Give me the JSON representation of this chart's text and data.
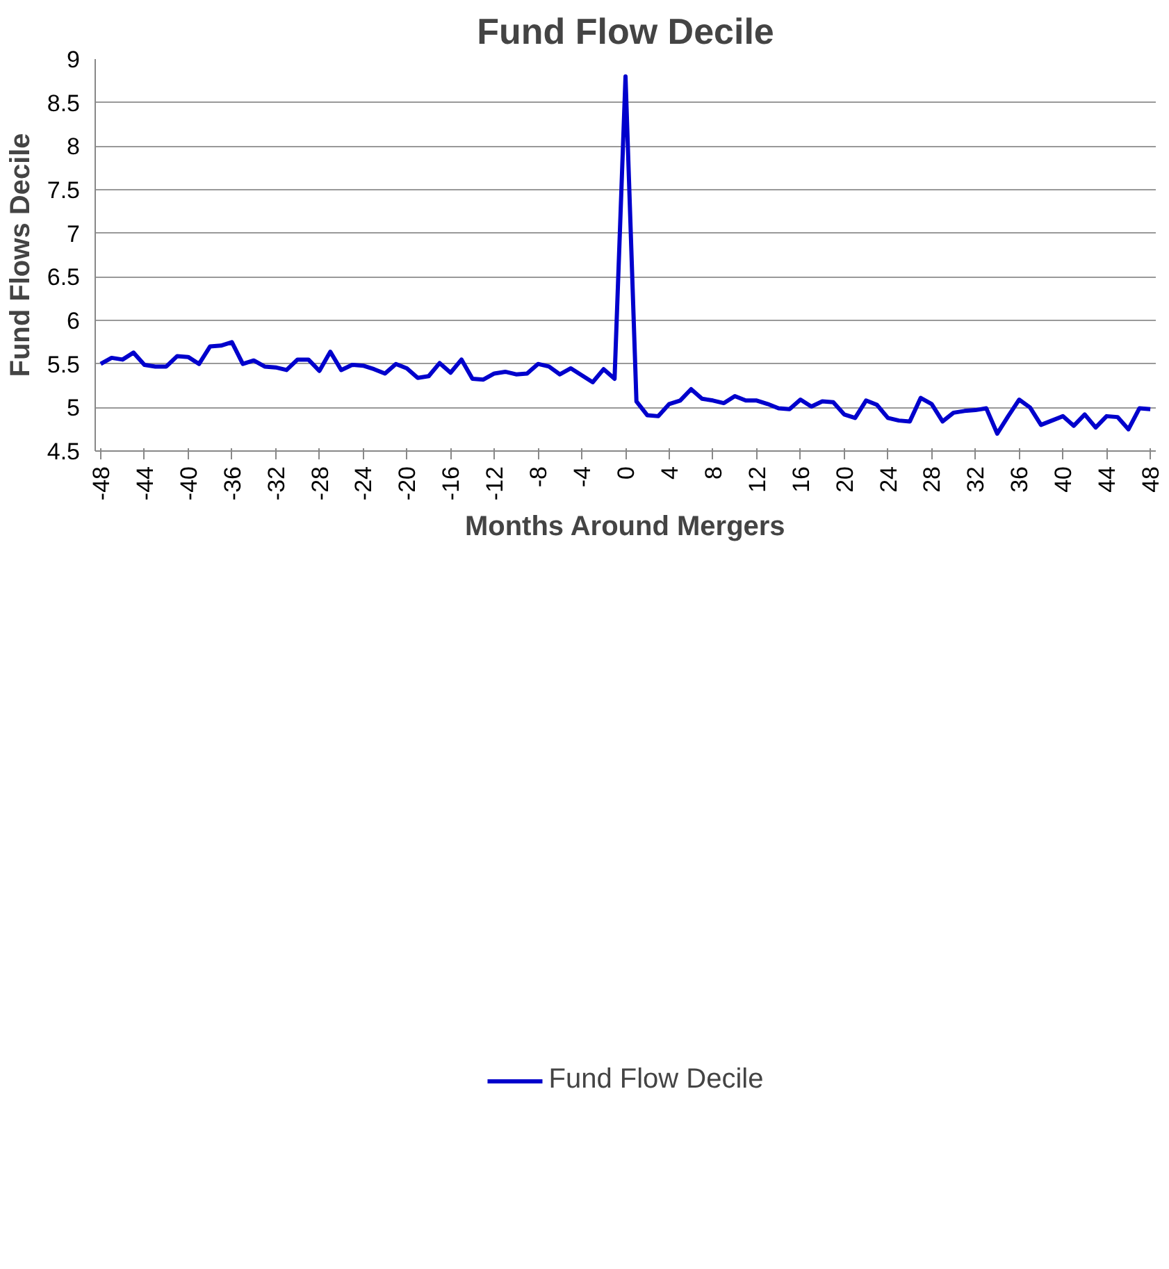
{
  "chart_data": {
    "type": "line",
    "title": "Fund Flow Decile",
    "xlabel": "Months Around Mergers",
    "ylabel": "Fund Flows Decile",
    "x": [
      -48,
      -47,
      -46,
      -45,
      -44,
      -43,
      -42,
      -41,
      -40,
      -39,
      -38,
      -37,
      -36,
      -35,
      -34,
      -33,
      -32,
      -31,
      -30,
      -29,
      -28,
      -27,
      -26,
      -25,
      -24,
      -23,
      -22,
      -21,
      -20,
      -19,
      -18,
      -17,
      -16,
      -15,
      -14,
      -13,
      -12,
      -11,
      -10,
      -9,
      -8,
      -7,
      -6,
      -5,
      -4,
      -3,
      -2,
      -1,
      0,
      1,
      2,
      3,
      4,
      5,
      6,
      7,
      8,
      9,
      10,
      11,
      12,
      13,
      14,
      15,
      16,
      17,
      18,
      19,
      20,
      21,
      22,
      23,
      24,
      25,
      26,
      27,
      28,
      29,
      30,
      31,
      32,
      33,
      34,
      35,
      36,
      37,
      38,
      39,
      40,
      41,
      42,
      43,
      44,
      45,
      46,
      47,
      48
    ],
    "series": [
      {
        "name": "Fund Flow Decile",
        "color": "#0000cc",
        "values": [
          5.5,
          5.57,
          5.55,
          5.63,
          5.49,
          5.47,
          5.47,
          5.59,
          5.58,
          5.5,
          5.7,
          5.71,
          5.75,
          5.5,
          5.54,
          5.47,
          5.46,
          5.43,
          5.55,
          5.55,
          5.42,
          5.64,
          5.43,
          5.49,
          5.48,
          5.44,
          5.39,
          5.5,
          5.45,
          5.34,
          5.36,
          5.51,
          5.4,
          5.55,
          5.33,
          5.32,
          5.39,
          5.41,
          5.38,
          5.39,
          5.5,
          5.47,
          5.38,
          5.45,
          5.37,
          5.29,
          5.44,
          5.33,
          8.8,
          5.07,
          4.91,
          4.9,
          5.04,
          5.08,
          5.21,
          5.1,
          5.08,
          5.05,
          5.13,
          5.08,
          5.08,
          5.04,
          4.99,
          4.98,
          5.09,
          5.01,
          5.07,
          5.06,
          4.92,
          4.88,
          5.08,
          5.03,
          4.88,
          4.85,
          4.84,
          5.11,
          5.04,
          4.84,
          4.94,
          4.96,
          4.97,
          4.99,
          4.7,
          4.9,
          5.09,
          5.0,
          4.8,
          4.85,
          4.9,
          4.79,
          4.92,
          4.77,
          4.9,
          4.89,
          4.75,
          4.99,
          4.98
        ]
      }
    ],
    "xlim": [
      -48.5,
      48.5
    ],
    "xticks": [
      -48,
      -44,
      -40,
      -36,
      -32,
      -28,
      -24,
      -20,
      -16,
      -12,
      -8,
      -4,
      0,
      4,
      8,
      12,
      16,
      20,
      24,
      28,
      32,
      36,
      40,
      44,
      48
    ],
    "ylim": [
      4.5,
      9
    ],
    "yticks": [
      4.5,
      5,
      5.5,
      6,
      6.5,
      7,
      7.5,
      8,
      8.5,
      9
    ],
    "grid": "y",
    "legend": "bottom",
    "marker": "none",
    "line_style": "solid"
  }
}
